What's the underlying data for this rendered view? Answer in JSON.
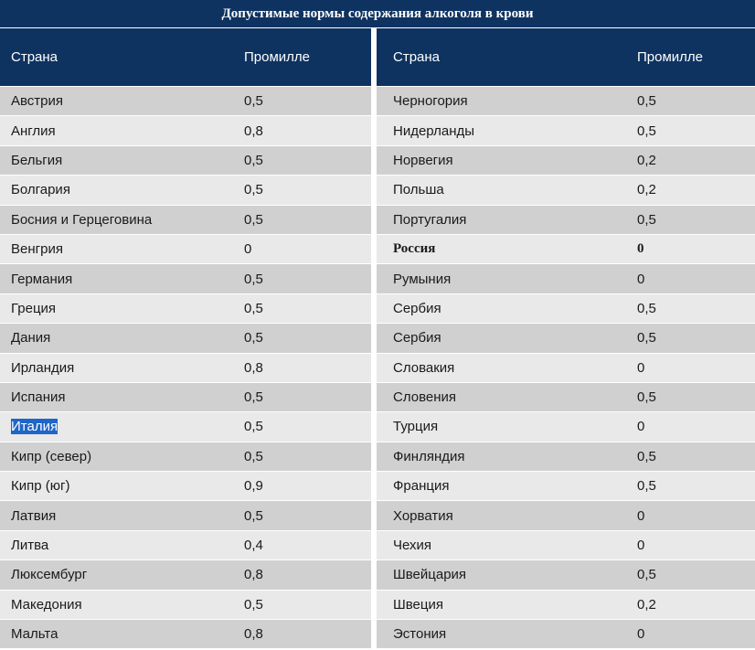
{
  "title": "Допустимые нормы содержания алкоголя в крови",
  "header": {
    "country": "Страна",
    "promille": "Промилле"
  },
  "highlight_color": "#1e66c8",
  "accent_color": "#0e3361",
  "left_rows": [
    {
      "country": "Австрия",
      "value": "0,5"
    },
    {
      "country": "Англия",
      "value": "0,8"
    },
    {
      "country": "Бельгия",
      "value": "0,5"
    },
    {
      "country": "Болгария",
      "value": "0,5"
    },
    {
      "country": "Босния и Герцеговина",
      "value": "0,5"
    },
    {
      "country": "Венгрия",
      "value": "0"
    },
    {
      "country": "Германия",
      "value": "0,5"
    },
    {
      "country": "Греция",
      "value": "0,5"
    },
    {
      "country": "Дания",
      "value": "0,5"
    },
    {
      "country": "Ирландия",
      "value": "0,8"
    },
    {
      "country": "Испания",
      "value": "0,5"
    },
    {
      "country": "Италия",
      "value": "0,5"
    },
    {
      "country": "Кипр (север)",
      "value": "0,5"
    },
    {
      "country": "Кипр (юг)",
      "value": "0,9"
    },
    {
      "country": "Латвия",
      "value": "0,5"
    },
    {
      "country": "Литва",
      "value": "0,4"
    },
    {
      "country": "Люксембург",
      "value": "0,8"
    },
    {
      "country": "Македония",
      "value": "0,5"
    },
    {
      "country": "Мальта",
      "value": "0,8"
    }
  ],
  "right_rows": [
    {
      "country": "Черногория",
      "value": "0,5"
    },
    {
      "country": "Нидерланды",
      "value": "0,5"
    },
    {
      "country": "Норвегия",
      "value": "0,2"
    },
    {
      "country": "Польша",
      "value": "0,2"
    },
    {
      "country": "Португалия",
      "value": "0,5"
    },
    {
      "country": "Россия",
      "value": "0"
    },
    {
      "country": "Румыния",
      "value": "0"
    },
    {
      "country": "Сербия",
      "value": "0,5"
    },
    {
      "country": "Сербия",
      "value": "0,5"
    },
    {
      "country": "Словакия",
      "value": "0"
    },
    {
      "country": "Словения",
      "value": "0,5"
    },
    {
      "country": "Турция",
      "value": "0"
    },
    {
      "country": "Финляндия",
      "value": "0,5"
    },
    {
      "country": "Франция",
      "value": "0,5"
    },
    {
      "country": "Хорватия",
      "value": "0"
    },
    {
      "country": "Чехия",
      "value": "0"
    },
    {
      "country": "Швейцария",
      "value": "0,5"
    },
    {
      "country": "Швеция",
      "value": "0,2"
    },
    {
      "country": "Эстония",
      "value": "0"
    }
  ]
}
